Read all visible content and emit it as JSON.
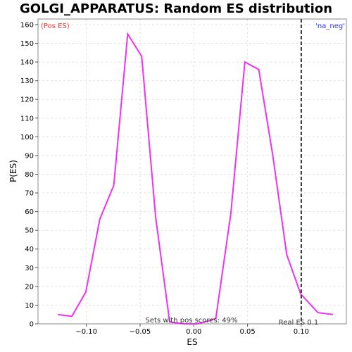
{
  "chart_data": {
    "type": "line",
    "title": "GOLGI_APPARATUS: Random ES distribution",
    "xlabel": "ES",
    "ylabel": "P(ES)",
    "xlim": [
      -0.145,
      0.142
    ],
    "ylim": [
      0,
      163
    ],
    "x_ticks": [
      -0.1,
      -0.05,
      0.0,
      0.05,
      0.1
    ],
    "x_tick_labels": [
      "−0.10",
      "−0.05",
      "0.00",
      "0.05",
      "0.10"
    ],
    "y_ticks": [
      0,
      10,
      20,
      30,
      40,
      50,
      60,
      70,
      80,
      90,
      100,
      110,
      120,
      130,
      140,
      150,
      160
    ],
    "grid": true,
    "series": [
      {
        "color": "#ee33ee",
        "x": [
          -0.1265,
          -0.1135,
          -0.1005,
          -0.0875,
          -0.0745,
          -0.0615,
          -0.0485,
          -0.0355,
          -0.0225,
          -0.0095,
          0.0035,
          0.0165,
          0.0205,
          0.0345,
          0.0475,
          0.0605,
          0.0735,
          0.0865,
          0.0995,
          0.1155,
          0.1295
        ],
        "values": [
          5,
          4,
          17,
          56,
          74,
          155,
          143,
          57,
          1,
          0,
          0,
          2,
          3,
          59,
          140,
          136,
          90,
          37,
          16,
          6,
          5
        ]
      }
    ],
    "real_es": 0.1,
    "real_es_label": "Real ES 0.1",
    "pos_label": "(Pos ES)",
    "neg_label": "'na_neg'",
    "pos_label_color": "#ee3333",
    "neg_label_color": "#3333ee",
    "sets_annotation": "Sets with pos scores: 49%"
  }
}
